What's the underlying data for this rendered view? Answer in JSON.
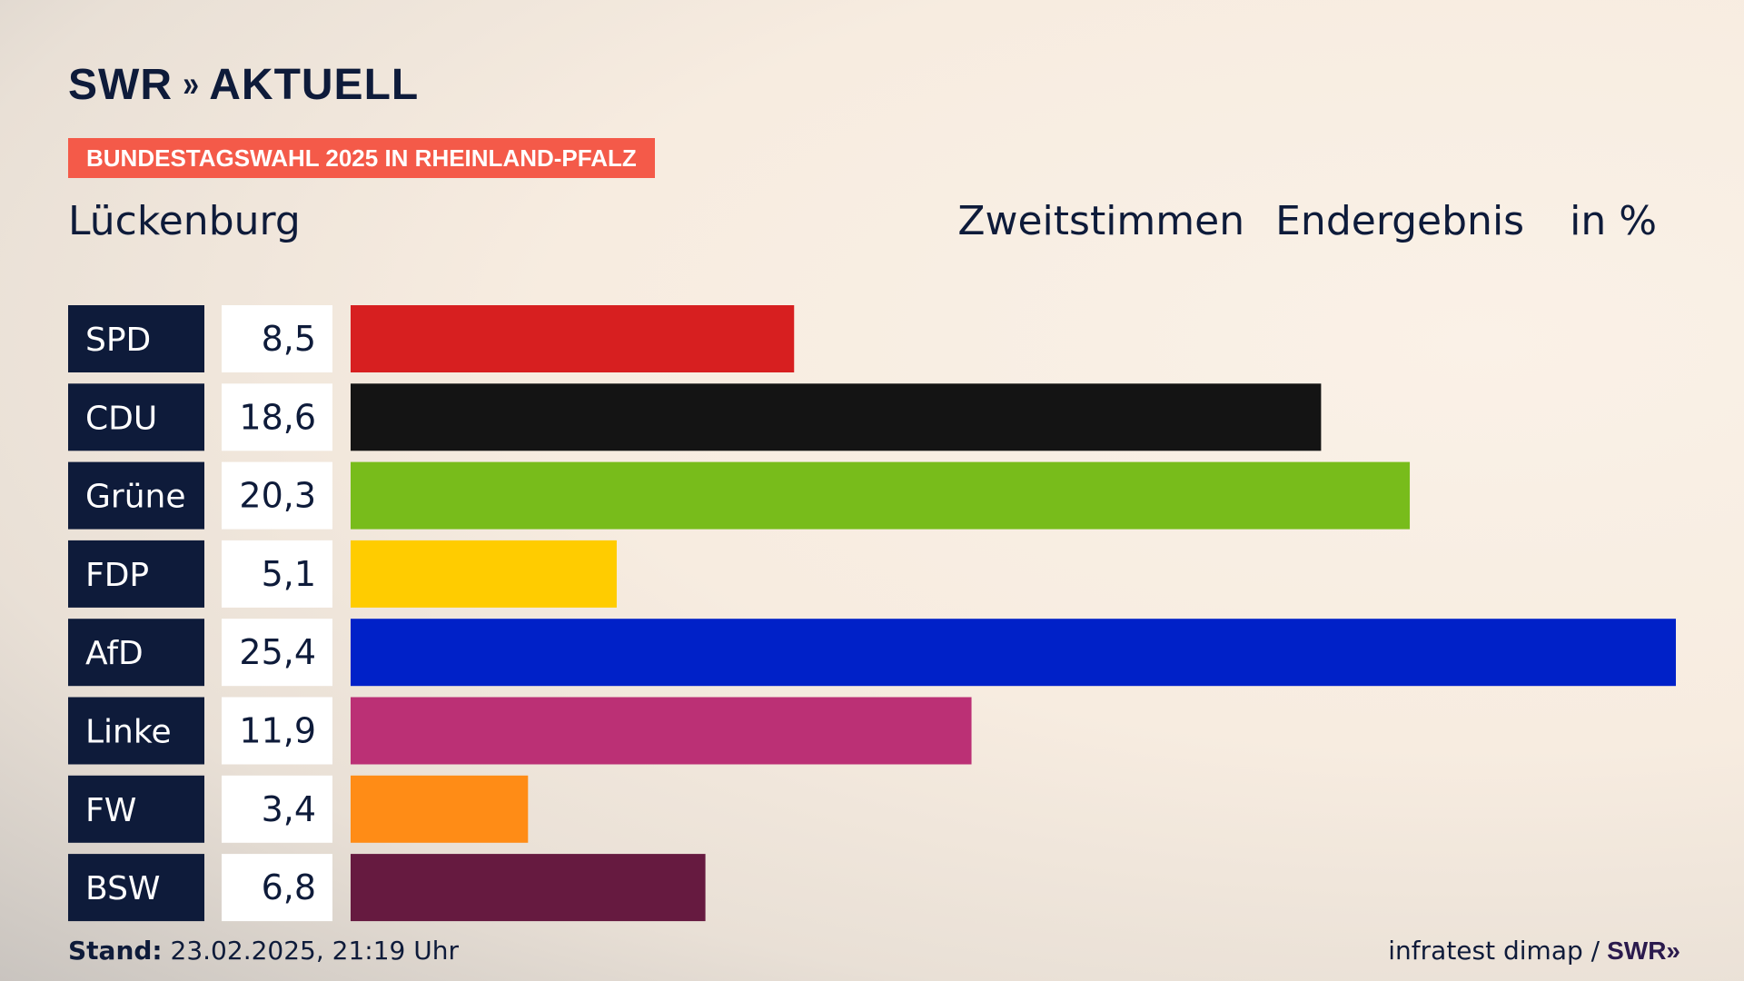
{
  "header": {
    "logo_text": "SWR",
    "logo_chevrons": "»",
    "logo_suffix": "AKTUELL",
    "tag": "BUNDESTAGSWAHL 2025 IN RHEINLAND-PFALZ",
    "location": "Lückenburg",
    "vote_type": "Zweitstimmen",
    "result_type": "Endergebnis",
    "unit": "in %"
  },
  "footer": {
    "stand_label": "Stand:",
    "stand_value": "23.02.2025, 21:19 Uhr",
    "source": "infratest dimap /",
    "source_brand": "SWR",
    "source_chevrons": "»"
  },
  "chart_data": {
    "type": "bar",
    "orientation": "horizontal",
    "categories": [
      "SPD",
      "CDU",
      "Grüne",
      "FDP",
      "AfD",
      "Linke",
      "FW",
      "BSW"
    ],
    "values": [
      8.5,
      18.6,
      20.3,
      5.1,
      25.4,
      11.9,
      3.4,
      6.8
    ],
    "value_labels": [
      "8,5",
      "18,6",
      "20,3",
      "5,1",
      "25,4",
      "11,9",
      "3,4",
      "6,8"
    ],
    "colors": [
      "#d71f20",
      "#141414",
      "#78bc1b",
      "#ffcc00",
      "#0021c8",
      "#bb3075",
      "#ff8c16",
      "#661a40"
    ],
    "label_bg": "#0e1b3a",
    "value_bg": "#ffffff",
    "xlim": [
      0,
      25.4
    ],
    "grid": false,
    "legend": "none"
  }
}
